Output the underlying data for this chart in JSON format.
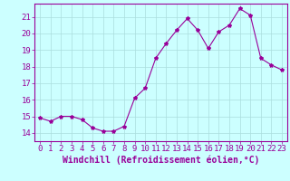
{
  "x": [
    0,
    1,
    2,
    3,
    4,
    5,
    6,
    7,
    8,
    9,
    10,
    11,
    12,
    13,
    14,
    15,
    16,
    17,
    18,
    19,
    20,
    21,
    22,
    23
  ],
  "y": [
    14.9,
    14.7,
    15.0,
    15.0,
    14.8,
    14.3,
    14.1,
    14.1,
    14.4,
    16.1,
    16.7,
    18.5,
    19.4,
    20.2,
    20.9,
    20.2,
    19.1,
    20.1,
    20.5,
    21.5,
    21.1,
    18.5,
    18.1,
    17.8
  ],
  "line_color": "#990099",
  "marker": "*",
  "marker_size": 3,
  "bg_color": "#ccffff",
  "grid_color": "#aadddd",
  "xlabel": "Windchill (Refroidissement éolien,°C)",
  "ylim": [
    13.5,
    21.8
  ],
  "xlim": [
    -0.5,
    23.5
  ],
  "yticks": [
    14,
    15,
    16,
    17,
    18,
    19,
    20,
    21
  ],
  "xticks": [
    0,
    1,
    2,
    3,
    4,
    5,
    6,
    7,
    8,
    9,
    10,
    11,
    12,
    13,
    14,
    15,
    16,
    17,
    18,
    19,
    20,
    21,
    22,
    23
  ],
  "xlabel_fontsize": 7,
  "tick_fontsize": 6.5
}
